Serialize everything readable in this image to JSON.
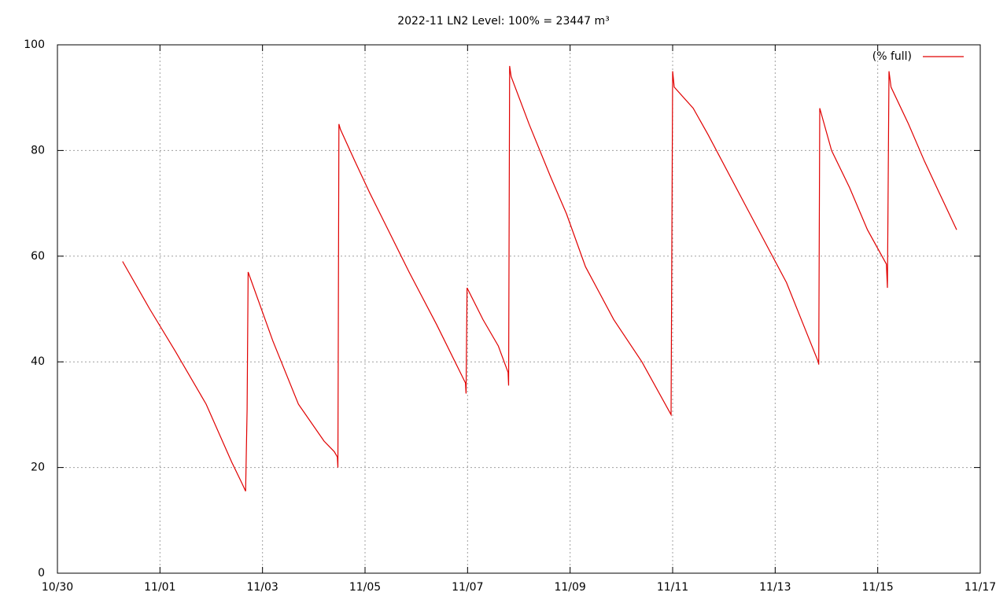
{
  "chart_data": {
    "type": "line",
    "title": "2022-11 LN2 Level: 100% = 23447 m³",
    "x": [
      1.27,
      1.8,
      2.3,
      2.9,
      3.4,
      3.6,
      3.67,
      3.7,
      3.72,
      4.2,
      4.7,
      5.2,
      5.4,
      5.46,
      5.47,
      5.49,
      5.52,
      5.8,
      6.09,
      6.5,
      6.86,
      7.4,
      7.96,
      7.97,
      7.99,
      8.3,
      8.6,
      8.79,
      8.8,
      8.82,
      8.85,
      9.2,
      9.62,
      9.93,
      10.3,
      10.85,
      11.4,
      11.97,
      12.0,
      12.03,
      12.4,
      12.69,
      13.4,
      14.22,
      14.84,
      14.85,
      14.87,
      15.1,
      15.45,
      15.8,
      16.17,
      16.19,
      16.22,
      16.26,
      16.6,
      16.91,
      17.2,
      17.54
    ],
    "series": [
      {
        "name": "(% full)",
        "color": "#e00000",
        "values": [
          59,
          50,
          42,
          32,
          21,
          17,
          15.5,
          31,
          57,
          44,
          32,
          25,
          23,
          22,
          20,
          85,
          84,
          78,
          72,
          64,
          57,
          47,
          36,
          34,
          54,
          48,
          43,
          38,
          35.5,
          96,
          94,
          85,
          75,
          68,
          58,
          48,
          40,
          30,
          95,
          92,
          88,
          83,
          70,
          55,
          40,
          39.5,
          88,
          80,
          73,
          65,
          58.5,
          54,
          95,
          92,
          85,
          78,
          72,
          65
        ]
      }
    ],
    "xlim": [
      0,
      18
    ],
    "xticks": [
      {
        "value": 0,
        "label": "10/30"
      },
      {
        "value": 2,
        "label": "11/01"
      },
      {
        "value": 4,
        "label": "11/03"
      },
      {
        "value": 6,
        "label": "11/05"
      },
      {
        "value": 8,
        "label": "11/07"
      },
      {
        "value": 10,
        "label": "11/09"
      },
      {
        "value": 12,
        "label": "11/11"
      },
      {
        "value": 14,
        "label": "11/13"
      },
      {
        "value": 16,
        "label": "11/15"
      },
      {
        "value": 18,
        "label": "11/17"
      }
    ],
    "ylim": [
      0,
      100
    ],
    "yticks": [
      0,
      20,
      40,
      60,
      80,
      100
    ],
    "grid": true,
    "legend": "top-right"
  }
}
